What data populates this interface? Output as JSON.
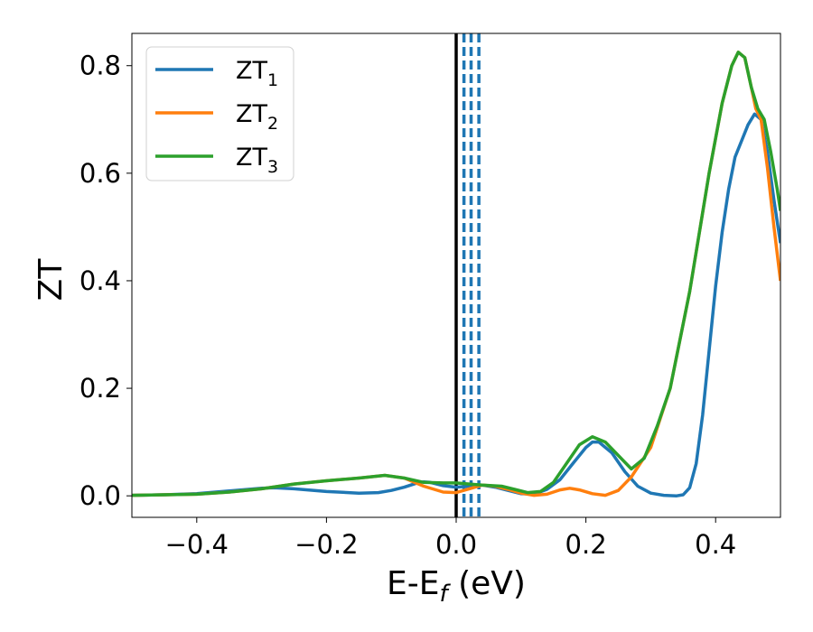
{
  "chart_data": {
    "type": "line",
    "title": "",
    "xlabel": "E-E$_f$ (eV)",
    "xlabel_parts": {
      "main": "E-E",
      "sub": "f",
      "rest": " (eV)"
    },
    "ylabel": "ZT",
    "xlim": [
      -0.5,
      0.5
    ],
    "ylim": [
      -0.04,
      0.86
    ],
    "xticks": [
      -0.4,
      -0.2,
      0.0,
      0.2,
      0.4
    ],
    "xtick_labels": [
      "−0.4",
      "−0.2",
      "0.0",
      "0.2",
      "0.4"
    ],
    "yticks": [
      0.0,
      0.2,
      0.4,
      0.6,
      0.8
    ],
    "ytick_labels": [
      "0.0",
      "0.2",
      "0.4",
      "0.6",
      "0.8"
    ],
    "grid": false,
    "legend_position": "top-left",
    "vertical_lines": [
      {
        "x": 0.0,
        "style": "solid",
        "color": "#000000"
      },
      {
        "x": 0.012,
        "style": "dashed",
        "color": "#1f77b4"
      },
      {
        "x": 0.023,
        "style": "dashed",
        "color": "#1f77b4"
      },
      {
        "x": 0.035,
        "style": "dashed",
        "color": "#1f77b4"
      }
    ],
    "series": [
      {
        "name": "ZT_1",
        "label_main": "ZT",
        "label_sub": "1",
        "color": "#1f77b4",
        "points": [
          [
            -0.5,
            0.001
          ],
          [
            -0.45,
            0.002
          ],
          [
            -0.4,
            0.004
          ],
          [
            -0.35,
            0.009
          ],
          [
            -0.3,
            0.014
          ],
          [
            -0.28,
            0.015
          ],
          [
            -0.25,
            0.013
          ],
          [
            -0.2,
            0.008
          ],
          [
            -0.15,
            0.005
          ],
          [
            -0.12,
            0.006
          ],
          [
            -0.1,
            0.01
          ],
          [
            -0.08,
            0.016
          ],
          [
            -0.06,
            0.024
          ],
          [
            -0.05,
            0.026
          ],
          [
            -0.04,
            0.025
          ],
          [
            -0.02,
            0.019
          ],
          [
            0.0,
            0.016
          ],
          [
            0.02,
            0.018
          ],
          [
            0.04,
            0.02
          ],
          [
            0.06,
            0.016
          ],
          [
            0.08,
            0.01
          ],
          [
            0.1,
            0.004
          ],
          [
            0.12,
            0.003
          ],
          [
            0.14,
            0.012
          ],
          [
            0.16,
            0.03
          ],
          [
            0.18,
            0.06
          ],
          [
            0.2,
            0.09
          ],
          [
            0.21,
            0.1
          ],
          [
            0.22,
            0.1
          ],
          [
            0.24,
            0.08
          ],
          [
            0.26,
            0.045
          ],
          [
            0.28,
            0.018
          ],
          [
            0.3,
            0.005
          ],
          [
            0.32,
            0.001
          ],
          [
            0.34,
            0.0
          ],
          [
            0.35,
            0.002
          ],
          [
            0.36,
            0.015
          ],
          [
            0.37,
            0.06
          ],
          [
            0.38,
            0.15
          ],
          [
            0.39,
            0.27
          ],
          [
            0.4,
            0.39
          ],
          [
            0.41,
            0.49
          ],
          [
            0.42,
            0.57
          ],
          [
            0.43,
            0.63
          ],
          [
            0.44,
            0.66
          ],
          [
            0.45,
            0.69
          ],
          [
            0.46,
            0.71
          ],
          [
            0.47,
            0.7
          ],
          [
            0.48,
            0.64
          ],
          [
            0.49,
            0.55
          ],
          [
            0.5,
            0.47
          ]
        ]
      },
      {
        "name": "ZT_2",
        "label_main": "ZT",
        "label_sub": "2",
        "color": "#ff7f0e",
        "points": [
          [
            -0.5,
            0.001
          ],
          [
            -0.45,
            0.002
          ],
          [
            -0.4,
            0.003
          ],
          [
            -0.35,
            0.007
          ],
          [
            -0.3,
            0.013
          ],
          [
            -0.25,
            0.022
          ],
          [
            -0.2,
            0.028
          ],
          [
            -0.15,
            0.033
          ],
          [
            -0.11,
            0.038
          ],
          [
            -0.08,
            0.033
          ],
          [
            -0.05,
            0.018
          ],
          [
            -0.02,
            0.007
          ],
          [
            0.0,
            0.006
          ],
          [
            0.02,
            0.013
          ],
          [
            0.04,
            0.02
          ],
          [
            0.06,
            0.018
          ],
          [
            0.08,
            0.012
          ],
          [
            0.1,
            0.005
          ],
          [
            0.12,
            0.001
          ],
          [
            0.14,
            0.003
          ],
          [
            0.16,
            0.011
          ],
          [
            0.175,
            0.014
          ],
          [
            0.19,
            0.011
          ],
          [
            0.21,
            0.004
          ],
          [
            0.23,
            0.001
          ],
          [
            0.25,
            0.01
          ],
          [
            0.27,
            0.035
          ],
          [
            0.3,
            0.09
          ],
          [
            0.33,
            0.2
          ],
          [
            0.36,
            0.38
          ],
          [
            0.39,
            0.6
          ],
          [
            0.41,
            0.73
          ],
          [
            0.425,
            0.8
          ],
          [
            0.435,
            0.825
          ],
          [
            0.445,
            0.815
          ],
          [
            0.455,
            0.76
          ],
          [
            0.462,
            0.72
          ],
          [
            0.47,
            0.7
          ],
          [
            0.48,
            0.61
          ],
          [
            0.49,
            0.5
          ],
          [
            0.5,
            0.4
          ]
        ]
      },
      {
        "name": "ZT_3",
        "label_main": "ZT",
        "label_sub": "3",
        "color": "#2ca02c",
        "points": [
          [
            -0.5,
            0.001
          ],
          [
            -0.45,
            0.002
          ],
          [
            -0.4,
            0.003
          ],
          [
            -0.35,
            0.007
          ],
          [
            -0.3,
            0.013
          ],
          [
            -0.25,
            0.022
          ],
          [
            -0.2,
            0.028
          ],
          [
            -0.15,
            0.033
          ],
          [
            -0.11,
            0.038
          ],
          [
            -0.08,
            0.033
          ],
          [
            -0.05,
            0.025
          ],
          [
            -0.02,
            0.024
          ],
          [
            0.0,
            0.024
          ],
          [
            0.02,
            0.022
          ],
          [
            0.04,
            0.02
          ],
          [
            0.07,
            0.018
          ],
          [
            0.09,
            0.012
          ],
          [
            0.11,
            0.006
          ],
          [
            0.13,
            0.008
          ],
          [
            0.15,
            0.025
          ],
          [
            0.17,
            0.06
          ],
          [
            0.19,
            0.095
          ],
          [
            0.21,
            0.11
          ],
          [
            0.23,
            0.1
          ],
          [
            0.25,
            0.075
          ],
          [
            0.27,
            0.05
          ],
          [
            0.29,
            0.07
          ],
          [
            0.31,
            0.13
          ],
          [
            0.33,
            0.2
          ],
          [
            0.36,
            0.38
          ],
          [
            0.39,
            0.6
          ],
          [
            0.41,
            0.73
          ],
          [
            0.425,
            0.8
          ],
          [
            0.435,
            0.825
          ],
          [
            0.445,
            0.815
          ],
          [
            0.455,
            0.76
          ],
          [
            0.465,
            0.72
          ],
          [
            0.475,
            0.7
          ],
          [
            0.485,
            0.64
          ],
          [
            0.495,
            0.57
          ],
          [
            0.5,
            0.53
          ]
        ]
      }
    ]
  }
}
